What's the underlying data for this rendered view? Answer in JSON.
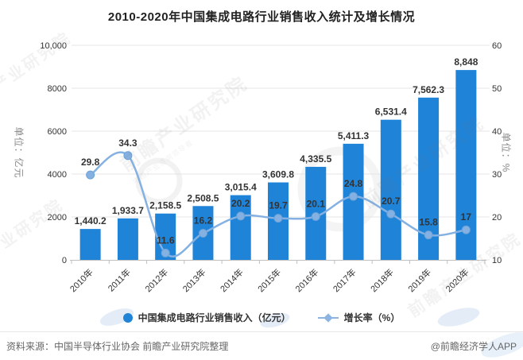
{
  "chart_data": {
    "type": "bar+line",
    "title": "2010-2020年中国集成电路行业销售收入统计及增长情况",
    "categories": [
      "2010年",
      "2011年",
      "2012年",
      "2013年",
      "2014年",
      "2015年",
      "2016年",
      "2017年",
      "2018年",
      "2019年",
      "2020年"
    ],
    "series": [
      {
        "name": "中国集成电路行业销售收入（亿元）",
        "type": "bar",
        "axis": "left",
        "color": "#1f83d8",
        "values": [
          1440.2,
          1933.7,
          2158.5,
          2508.5,
          3015.4,
          3609.8,
          4335.5,
          5411.3,
          6531.4,
          7562.3,
          8848
        ],
        "labels": [
          "1,440.2",
          "1,933.7",
          "2,158.5",
          "2,508.5",
          "3,015.4",
          "3,609.8",
          "4,335.5",
          "5,411.3",
          "6,531.4",
          "7,562.3",
          "8,848"
        ]
      },
      {
        "name": "增长率（%）",
        "type": "line",
        "axis": "right",
        "color": "#85b1e2",
        "values": [
          29.8,
          34.3,
          11.6,
          16.2,
          20.2,
          19.7,
          20.1,
          24.8,
          20.7,
          15.8,
          17
        ],
        "labels": [
          "29.8",
          "34.3",
          "11.6",
          "16.2",
          "20.2",
          "19.7",
          "20.1",
          "24.8",
          "20.7",
          "15.8",
          "17"
        ]
      }
    ],
    "left_axis": {
      "title": "单位：亿元",
      "min": 0,
      "max": 10000,
      "tick_values": [
        0,
        2000,
        4000,
        6000,
        8000,
        10000
      ],
      "ticks": [
        "0",
        "2000",
        "4000",
        "6000",
        "8000",
        "10,000"
      ]
    },
    "right_axis": {
      "title": "单位：%",
      "min": 10,
      "max": 60,
      "tick_values": [
        10,
        20,
        30,
        40,
        50,
        60
      ],
      "ticks": [
        "10",
        "20",
        "30",
        "40",
        "50",
        "60"
      ]
    },
    "grid_on": true,
    "legend_position": "bottom"
  },
  "footer": {
    "source": "资料来源：中国半导体行业协会 前瞻产业研究院整理",
    "credit": "@前瞻经济学人APP"
  },
  "watermark": {
    "text": "前瞻产业研究院",
    "subtext": "中国产业咨询领导者"
  }
}
